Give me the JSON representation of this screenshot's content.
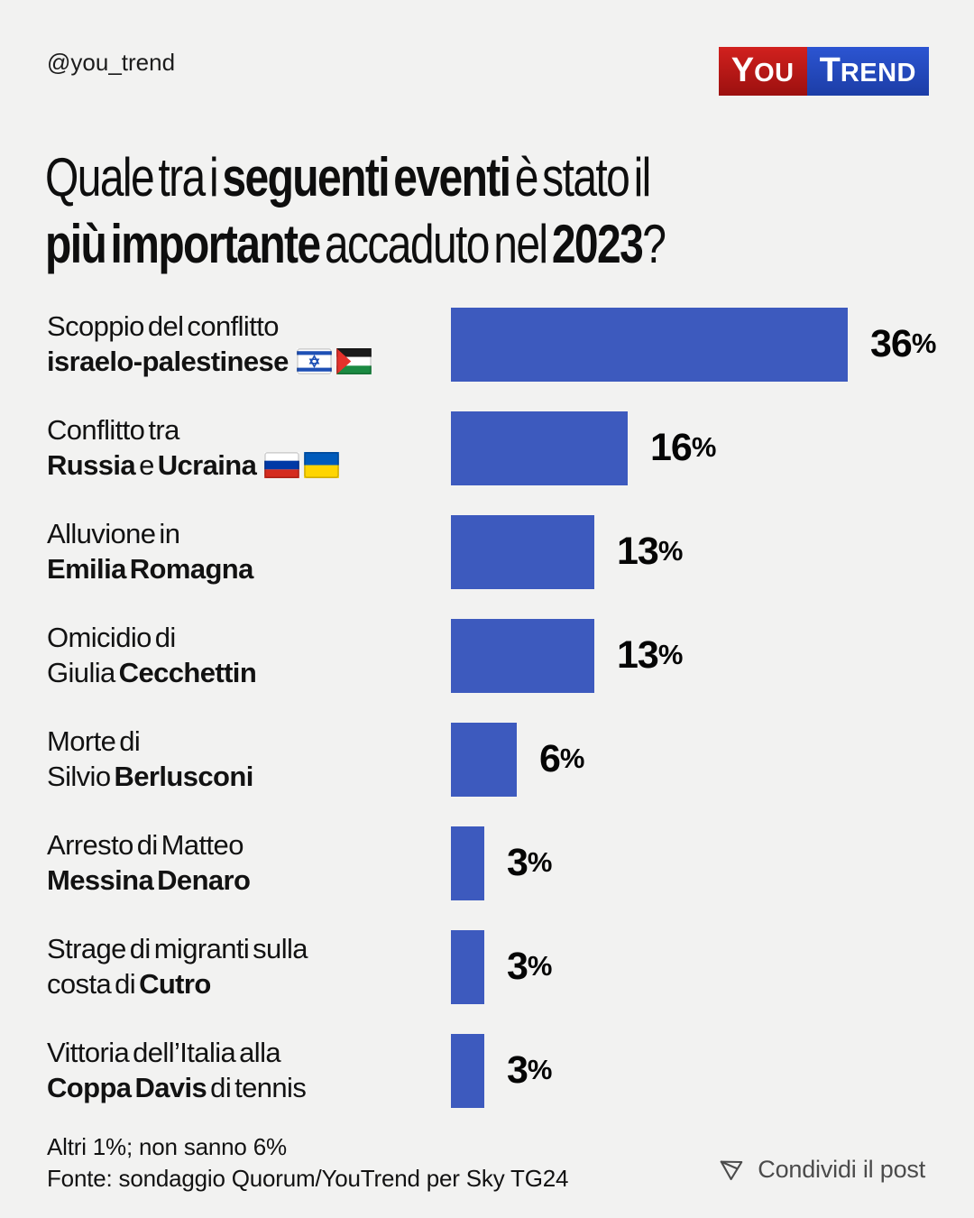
{
  "colors": {
    "background": "#f2f2f1",
    "bar_blue": "#3d5abe",
    "text_dark": "#121212",
    "share_gray": "#4b4b4b"
  },
  "header": {
    "handle": "@you_trend",
    "logo": {
      "parts": [
        {
          "text": "You",
          "color_top": "#d2211e",
          "color_bottom": "#9c100f"
        },
        {
          "text": "Trend",
          "color_top": "#2c55d2",
          "color_bottom": "#1c3da6"
        }
      ]
    }
  },
  "title": {
    "plain": "Quale tra i seguenti eventi è stato il più importante accaduto nel 2023?",
    "lines": [
      [
        {
          "t": "Quale tra i ",
          "b": false
        },
        {
          "t": "seguenti eventi",
          "b": true
        },
        {
          "t": " è stato il",
          "b": false
        }
      ],
      [
        {
          "t": "più importante",
          "b": true
        },
        {
          "t": " accaduto nel ",
          "b": false
        },
        {
          "t": "2023",
          "b": true
        },
        {
          "t": "?",
          "b": false
        }
      ]
    ]
  },
  "chart_data": {
    "type": "bar",
    "orientation": "horizontal",
    "title": "Quale tra i seguenti eventi è stato il più importante accaduto nel 2023?",
    "unit": "%",
    "xlim": [
      0,
      36
    ],
    "grid": false,
    "legend": false,
    "bar_color": "#3d5abe",
    "categories": [
      "Scoppio del conflitto israelo-palestinese",
      "Conflitto tra Russia e Ucraina",
      "Alluvione in Emilia Romagna",
      "Omicidio di Giulia Cecchettin",
      "Morte di Silvio Berlusconi",
      "Arresto di Matteo Messina Denaro",
      "Strage di migranti sulla costa di Cutro",
      "Vittoria dell’Italia alla Coppa Davis di tennis"
    ],
    "values": [
      36,
      16,
      13,
      13,
      6,
      3,
      3,
      3
    ],
    "value_labels": [
      "36%",
      "16%",
      "13%",
      "13%",
      "6%",
      "3%",
      "3%",
      "3%"
    ],
    "rows": [
      {
        "value": 36,
        "value_label": "36%",
        "lines": [
          [
            {
              "t": "Scoppio del conflitto",
              "b": false
            }
          ],
          [
            {
              "t": "israelo-palestinese",
              "b": true
            }
          ]
        ],
        "flags": [
          "israel",
          "palestine"
        ]
      },
      {
        "value": 16,
        "value_label": "16%",
        "lines": [
          [
            {
              "t": "Conflitto tra",
              "b": false
            }
          ],
          [
            {
              "t": "Russia",
              "b": true
            },
            {
              "t": " e ",
              "b": false
            },
            {
              "t": "Ucraina",
              "b": true
            }
          ]
        ],
        "flags": [
          "russia",
          "ukraine"
        ]
      },
      {
        "value": 13,
        "value_label": "13%",
        "lines": [
          [
            {
              "t": "Alluvione in",
              "b": false
            }
          ],
          [
            {
              "t": "Emilia Romagna",
              "b": true
            }
          ]
        ],
        "flags": []
      },
      {
        "value": 13,
        "value_label": "13%",
        "lines": [
          [
            {
              "t": "Omicidio di",
              "b": false
            }
          ],
          [
            {
              "t": "Giulia ",
              "b": false
            },
            {
              "t": "Cecchettin",
              "b": true
            }
          ]
        ],
        "flags": []
      },
      {
        "value": 6,
        "value_label": "6%",
        "lines": [
          [
            {
              "t": "Morte di",
              "b": false
            }
          ],
          [
            {
              "t": "Silvio ",
              "b": false
            },
            {
              "t": "Berlusconi",
              "b": true
            }
          ]
        ],
        "flags": []
      },
      {
        "value": 3,
        "value_label": "3%",
        "lines": [
          [
            {
              "t": "Arresto di Matteo",
              "b": false
            }
          ],
          [
            {
              "t": "Messina Denaro",
              "b": true
            }
          ]
        ],
        "flags": []
      },
      {
        "value": 3,
        "value_label": "3%",
        "lines": [
          [
            {
              "t": "Strage di migranti sulla",
              "b": false
            }
          ],
          [
            {
              "t": "costa di ",
              "b": false
            },
            {
              "t": "Cutro",
              "b": true
            }
          ]
        ],
        "flags": []
      },
      {
        "value": 3,
        "value_label": "3%",
        "lines": [
          [
            {
              "t": "Vittoria dell’Italia alla",
              "b": false
            }
          ],
          [
            {
              "t": "Coppa Davis",
              "b": true
            },
            {
              "t": " di tennis",
              "b": false
            }
          ]
        ],
        "flags": []
      }
    ]
  },
  "footer": {
    "note": "Altri 1%; non sanno 6%",
    "source": "Fonte: sondaggio Quorum/YouTrend per Sky TG24",
    "share_label": "Condividi il post"
  }
}
